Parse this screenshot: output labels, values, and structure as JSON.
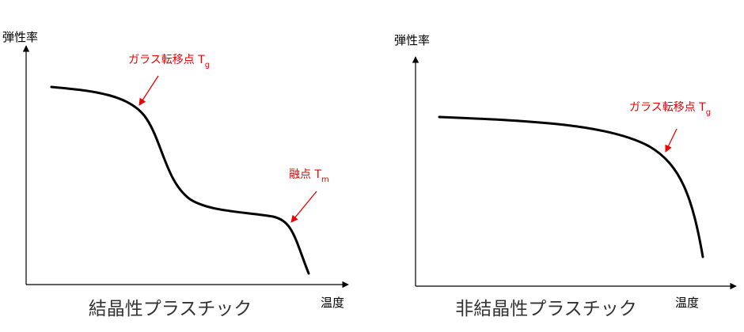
{
  "panels": [
    {
      "title": "結晶性プラスチック",
      "y_label": "弾性率",
      "x_label": "温度",
      "annotations": [
        {
          "text": "ガラス転移点 T",
          "subscript": "g"
        },
        {
          "text": "融点 T",
          "subscript": "m"
        }
      ]
    },
    {
      "title": "非結晶性プラスチック",
      "y_label": "弾性率",
      "x_label": "温度",
      "annotations": [
        {
          "text": "ガラス転移点 T",
          "subscript": "g"
        }
      ]
    }
  ]
}
